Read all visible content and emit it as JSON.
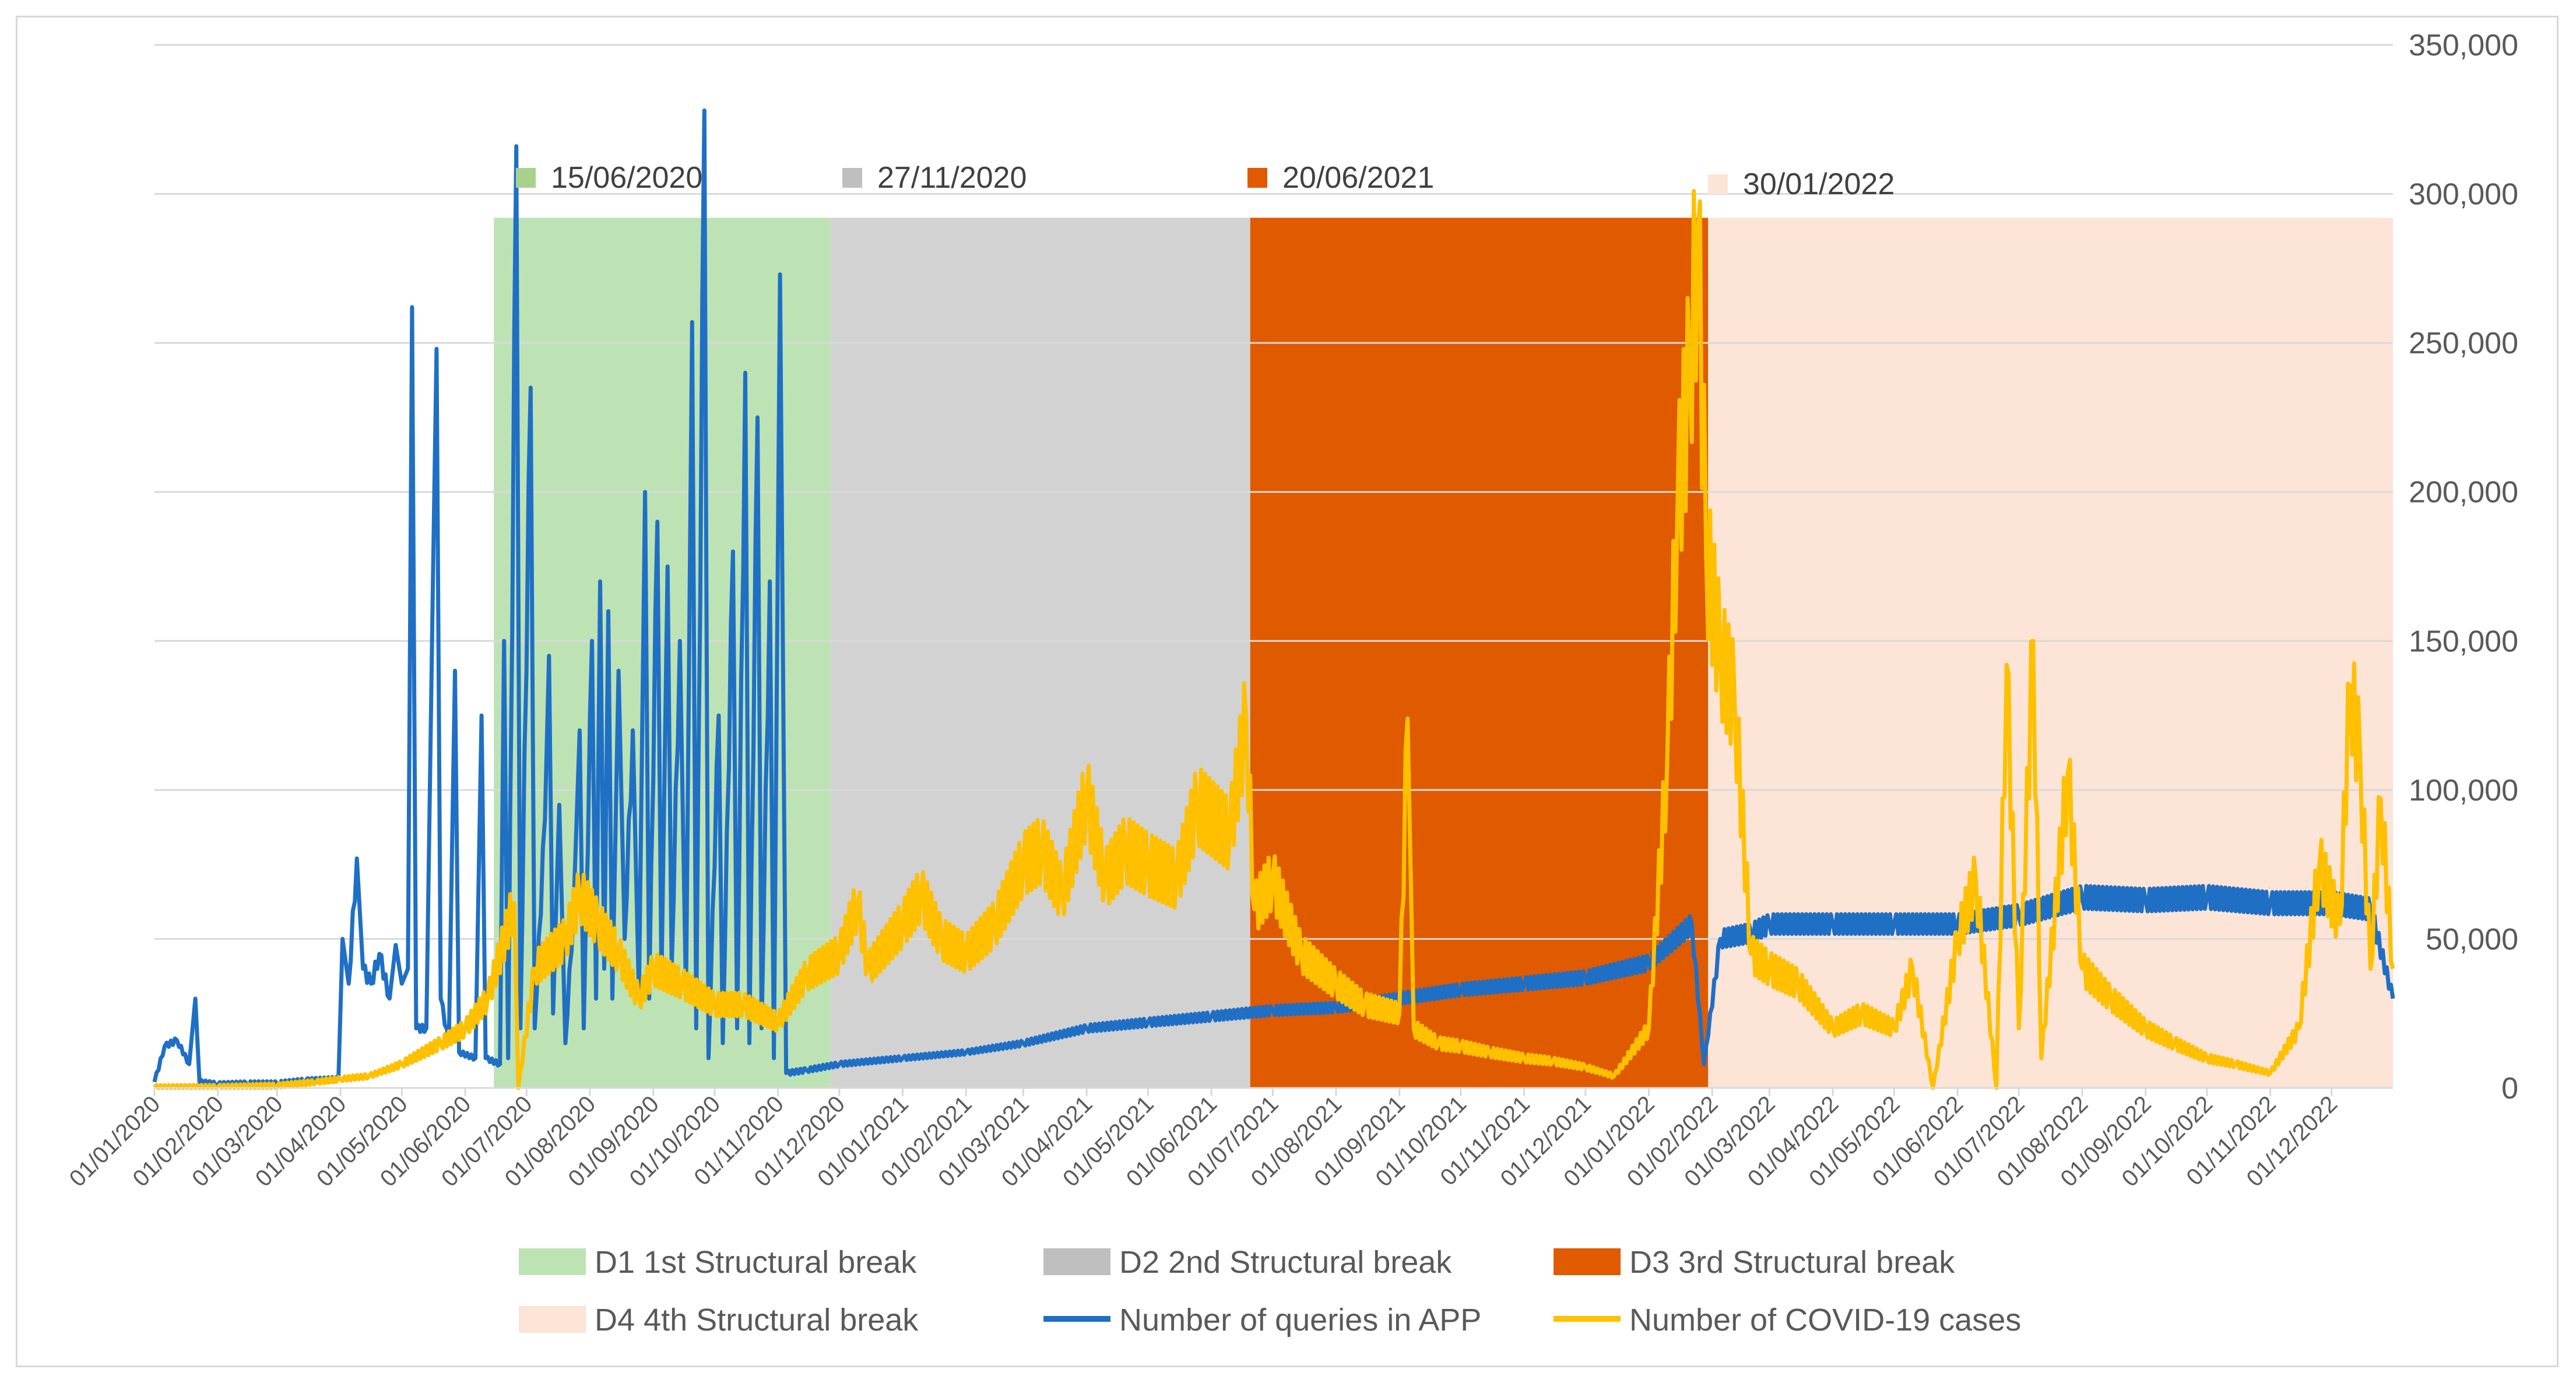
{
  "chart_data": {
    "type": "line",
    "title": "",
    "xlabel": "",
    "ylabel": "",
    "y_axis": {
      "side": "right",
      "range": [
        0,
        350000
      ],
      "ticks": [
        0,
        50000,
        100000,
        150000,
        200000,
        250000,
        300000,
        350000
      ],
      "tick_labels": [
        "0",
        "50,000",
        "100,000",
        "150,000",
        "200,000",
        "250,000",
        "300,000",
        "350,000"
      ]
    },
    "x_axis": {
      "start": "2020-01-01",
      "end": "2022-12-31",
      "tick_dates": [
        "2020-01-01",
        "2020-02-01",
        "2020-03-01",
        "2020-04-01",
        "2020-05-01",
        "2020-06-01",
        "2020-07-01",
        "2020-08-01",
        "2020-09-01",
        "2020-10-01",
        "2020-11-01",
        "2020-12-01",
        "2021-01-01",
        "2021-02-01",
        "2021-03-01",
        "2021-04-01",
        "2021-05-01",
        "2021-06-01",
        "2021-07-01",
        "2021-08-01",
        "2021-09-01",
        "2021-10-01",
        "2021-11-01",
        "2021-12-01",
        "2022-01-01",
        "2022-02-01",
        "2022-03-01",
        "2022-04-01",
        "2022-05-01",
        "2022-06-01",
        "2022-07-01",
        "2022-08-01",
        "2022-09-01",
        "2022-10-01",
        "2022-11-01",
        "2022-12-01"
      ],
      "tick_labels": [
        "01/01/2020",
        "01/02/2020",
        "01/03/2020",
        "01/04/2020",
        "01/05/2020",
        "01/06/2020",
        "01/07/2020",
        "01/08/2020",
        "01/09/2020",
        "01/10/2020",
        "01/11/2020",
        "01/12/2020",
        "01/01/2021",
        "01/02/2021",
        "01/03/2021",
        "01/04/2021",
        "01/05/2021",
        "01/06/2021",
        "01/07/2021",
        "01/08/2021",
        "01/09/2021",
        "01/10/2021",
        "01/11/2021",
        "01/12/2021",
        "01/01/2022",
        "01/02/2022",
        "01/03/2022",
        "01/04/2022",
        "01/05/2022",
        "01/06/2022",
        "01/07/2022",
        "01/08/2022",
        "01/09/2022",
        "01/10/2022",
        "01/11/2022",
        "01/12/2022"
      ]
    },
    "breaks": [
      {
        "id": "D1",
        "legend": "D1 1st Structural break",
        "label": "15/06/2020",
        "start": "2020-06-15",
        "end": "2020-11-27",
        "color": "#bde3b5",
        "band_top": 292000
      },
      {
        "id": "D2",
        "legend": "D2 2nd Structural break",
        "label": "27/11/2020",
        "start": "2020-11-27",
        "end": "2021-06-20",
        "color": "#d2d2d2",
        "band_top": 292000
      },
      {
        "id": "D3",
        "legend": "D3 3rd Structural break",
        "label": "20/06/2021",
        "start": "2021-06-20",
        "end": "2022-01-30",
        "color": "#e05a00",
        "band_top": 292000
      },
      {
        "id": "D4",
        "legend": "D4 4th Structural break",
        "label": "30/01/2022",
        "start": "2022-01-30",
        "end": "2022-12-31",
        "color": "#fce4d6",
        "band_top": 292000
      }
    ],
    "series": [
      {
        "name": "Number of queries in APP",
        "color": "#1f6fc5",
        "points": [
          [
            "2020-01-01",
            2000
          ],
          [
            "2020-01-06",
            14000
          ],
          [
            "2020-01-12",
            16000
          ],
          [
            "2020-01-18",
            8000
          ],
          [
            "2020-01-21",
            30000
          ],
          [
            "2020-01-23",
            2000
          ],
          [
            "2020-02-01",
            1200
          ],
          [
            "2020-02-15",
            1500
          ],
          [
            "2020-03-01",
            1500
          ],
          [
            "2020-03-15",
            2500
          ],
          [
            "2020-03-31",
            3000
          ],
          [
            "2020-04-02",
            50000
          ],
          [
            "2020-04-05",
            35000
          ],
          [
            "2020-04-09",
            77000
          ],
          [
            "2020-04-12",
            40000
          ],
          [
            "2020-04-16",
            35000
          ],
          [
            "2020-04-20",
            45000
          ],
          [
            "2020-04-25",
            30000
          ],
          [
            "2020-04-28",
            48000
          ],
          [
            "2020-05-01",
            35000
          ],
          [
            "2020-05-04",
            40000
          ],
          [
            "2020-05-06",
            262000
          ],
          [
            "2020-05-08",
            20000
          ],
          [
            "2020-05-13",
            20000
          ],
          [
            "2020-05-16",
            160000
          ],
          [
            "2020-05-18",
            248000
          ],
          [
            "2020-05-20",
            30000
          ],
          [
            "2020-05-24",
            15000
          ],
          [
            "2020-05-27",
            140000
          ],
          [
            "2020-05-29",
            12000
          ],
          [
            "2020-06-06",
            10000
          ],
          [
            "2020-06-09",
            125000
          ],
          [
            "2020-06-11",
            10000
          ],
          [
            "2020-06-18",
            8000
          ],
          [
            "2020-06-20",
            150000
          ],
          [
            "2020-06-22",
            10000
          ],
          [
            "2020-06-26",
            316000
          ],
          [
            "2020-06-28",
            20000
          ],
          [
            "2020-07-03",
            235000
          ],
          [
            "2020-07-05",
            20000
          ],
          [
            "2020-07-10",
            90000
          ],
          [
            "2020-07-12",
            145000
          ],
          [
            "2020-07-14",
            25000
          ],
          [
            "2020-07-17",
            95000
          ],
          [
            "2020-07-20",
            15000
          ],
          [
            "2020-07-24",
            60000
          ],
          [
            "2020-07-27",
            120000
          ],
          [
            "2020-07-29",
            20000
          ],
          [
            "2020-08-02",
            150000
          ],
          [
            "2020-08-04",
            30000
          ],
          [
            "2020-08-06",
            170000
          ],
          [
            "2020-08-08",
            40000
          ],
          [
            "2020-08-10",
            160000
          ],
          [
            "2020-08-12",
            30000
          ],
          [
            "2020-08-15",
            140000
          ],
          [
            "2020-08-18",
            50000
          ],
          [
            "2020-08-22",
            120000
          ],
          [
            "2020-08-25",
            30000
          ],
          [
            "2020-08-28",
            200000
          ],
          [
            "2020-08-30",
            30000
          ],
          [
            "2020-09-03",
            190000
          ],
          [
            "2020-09-05",
            35000
          ],
          [
            "2020-09-08",
            175000
          ],
          [
            "2020-09-10",
            40000
          ],
          [
            "2020-09-14",
            150000
          ],
          [
            "2020-09-17",
            30000
          ],
          [
            "2020-09-20",
            257000
          ],
          [
            "2020-09-22",
            20000
          ],
          [
            "2020-09-26",
            328000
          ],
          [
            "2020-09-28",
            10000
          ],
          [
            "2020-10-03",
            125000
          ],
          [
            "2020-10-05",
            15000
          ],
          [
            "2020-10-10",
            180000
          ],
          [
            "2020-10-12",
            20000
          ],
          [
            "2020-10-16",
            240000
          ],
          [
            "2020-10-18",
            15000
          ],
          [
            "2020-10-22",
            225000
          ],
          [
            "2020-10-24",
            20000
          ],
          [
            "2020-10-28",
            170000
          ],
          [
            "2020-10-30",
            10000
          ],
          [
            "2020-11-02",
            273000
          ],
          [
            "2020-11-05",
            5000
          ],
          [
            "2020-11-15",
            6000
          ],
          [
            "2020-12-01",
            8000
          ],
          [
            "2021-01-01",
            10000
          ],
          [
            "2021-02-01",
            12000
          ],
          [
            "2021-03-01",
            15000
          ],
          [
            "2021-04-01",
            20000
          ],
          [
            "2021-05-01",
            22000
          ],
          [
            "2021-06-01",
            24000
          ],
          [
            "2021-07-01",
            26000
          ],
          [
            "2021-08-01",
            27000
          ],
          [
            "2021-09-01",
            30000
          ],
          [
            "2021-10-01",
            33000
          ],
          [
            "2021-11-01",
            35000
          ],
          [
            "2021-12-01",
            37000
          ],
          [
            "2022-01-01",
            42000
          ],
          [
            "2022-01-22",
            55000
          ],
          [
            "2022-01-28",
            8000
          ],
          [
            "2022-02-05",
            50000
          ],
          [
            "2022-02-20",
            52000
          ],
          [
            "2022-03-01",
            55000
          ],
          [
            "2022-04-01",
            55000
          ],
          [
            "2022-05-01",
            55000
          ],
          [
            "2022-06-01",
            55000
          ],
          [
            "2022-07-01",
            58000
          ],
          [
            "2022-08-01",
            64000
          ],
          [
            "2022-09-01",
            63000
          ],
          [
            "2022-10-01",
            64000
          ],
          [
            "2022-11-01",
            62000
          ],
          [
            "2022-12-01",
            62000
          ],
          [
            "2022-12-20",
            60000
          ],
          [
            "2022-12-31",
            30000
          ]
        ]
      },
      {
        "name": "Number of COVID-19 cases",
        "color": "#ffc000",
        "points": [
          [
            "2020-01-01",
            200
          ],
          [
            "2020-02-01",
            300
          ],
          [
            "2020-03-01",
            800
          ],
          [
            "2020-03-20",
            2000
          ],
          [
            "2020-04-01",
            3000
          ],
          [
            "2020-04-15",
            4000
          ],
          [
            "2020-05-01",
            8000
          ],
          [
            "2020-05-20",
            15000
          ],
          [
            "2020-06-01",
            20000
          ],
          [
            "2020-06-12",
            30000
          ],
          [
            "2020-06-25",
            62000
          ],
          [
            "2020-06-27",
            0
          ],
          [
            "2020-07-05",
            40000
          ],
          [
            "2020-07-20",
            50000
          ],
          [
            "2020-07-27",
            65000
          ],
          [
            "2020-08-05",
            55000
          ],
          [
            "2020-08-15",
            45000
          ],
          [
            "2020-08-25",
            30000
          ],
          [
            "2020-09-01",
            40000
          ],
          [
            "2020-09-15",
            35000
          ],
          [
            "2020-10-01",
            28000
          ],
          [
            "2020-10-15",
            28000
          ],
          [
            "2020-11-01",
            22000
          ],
          [
            "2020-11-15",
            38000
          ],
          [
            "2020-12-01",
            45000
          ],
          [
            "2020-12-10",
            62000
          ],
          [
            "2020-12-15",
            40000
          ],
          [
            "2021-01-01",
            55000
          ],
          [
            "2021-01-10",
            65000
          ],
          [
            "2021-01-20",
            50000
          ],
          [
            "2021-02-01",
            45000
          ],
          [
            "2021-02-15",
            55000
          ],
          [
            "2021-03-01",
            75000
          ],
          [
            "2021-03-10",
            80000
          ],
          [
            "2021-03-20",
            65000
          ],
          [
            "2021-04-01",
            98000
          ],
          [
            "2021-04-10",
            70000
          ],
          [
            "2021-04-20",
            80000
          ],
          [
            "2021-05-01",
            75000
          ],
          [
            "2021-05-15",
            70000
          ],
          [
            "2021-05-25",
            95000
          ],
          [
            "2021-06-10",
            85000
          ],
          [
            "2021-06-18",
            124000
          ],
          [
            "2021-06-22",
            60000
          ],
          [
            "2021-07-01",
            70000
          ],
          [
            "2021-07-15",
            45000
          ],
          [
            "2021-08-01",
            35000
          ],
          [
            "2021-08-15",
            28000
          ],
          [
            "2021-09-01",
            25000
          ],
          [
            "2021-09-05",
            124000
          ],
          [
            "2021-09-08",
            20000
          ],
          [
            "2021-09-20",
            15000
          ],
          [
            "2021-10-01",
            14000
          ],
          [
            "2021-10-15",
            12000
          ],
          [
            "2021-11-01",
            10000
          ],
          [
            "2021-11-15",
            9000
          ],
          [
            "2021-12-01",
            7000
          ],
          [
            "2021-12-15",
            4000
          ],
          [
            "2022-01-01",
            20000
          ],
          [
            "2022-01-10",
            110000
          ],
          [
            "2022-01-15",
            195000
          ],
          [
            "2022-01-21",
            240000
          ],
          [
            "2022-01-25",
            288000
          ],
          [
            "2022-01-29",
            180000
          ],
          [
            "2022-02-05",
            145000
          ],
          [
            "2022-02-12",
            130000
          ],
          [
            "2022-02-20",
            45000
          ],
          [
            "2022-03-01",
            40000
          ],
          [
            "2022-03-15",
            35000
          ],
          [
            "2022-04-01",
            20000
          ],
          [
            "2022-04-15",
            25000
          ],
          [
            "2022-05-01",
            20000
          ],
          [
            "2022-05-10",
            40000
          ],
          [
            "2022-05-20",
            0
          ],
          [
            "2022-06-01",
            50000
          ],
          [
            "2022-06-10",
            70000
          ],
          [
            "2022-06-20",
            0
          ],
          [
            "2022-06-25",
            142000
          ],
          [
            "2022-07-01",
            20000
          ],
          [
            "2022-07-08",
            150000
          ],
          [
            "2022-07-12",
            10000
          ],
          [
            "2022-07-25",
            106000
          ],
          [
            "2022-08-01",
            40000
          ],
          [
            "2022-08-15",
            30000
          ],
          [
            "2022-09-01",
            20000
          ],
          [
            "2022-09-15",
            15000
          ],
          [
            "2022-10-01",
            10000
          ],
          [
            "2022-10-15",
            8000
          ],
          [
            "2022-11-01",
            5000
          ],
          [
            "2022-11-15",
            20000
          ],
          [
            "2022-11-25",
            75000
          ],
          [
            "2022-12-05",
            55000
          ],
          [
            "2022-12-10",
            135000
          ],
          [
            "2022-12-15",
            110000
          ],
          [
            "2022-12-20",
            40000
          ],
          [
            "2022-12-25",
            97000
          ],
          [
            "2022-12-31",
            40000
          ]
        ]
      }
    ],
    "legend": {
      "placement": "bottom",
      "entries": [
        {
          "label": "D1 1st Structural break",
          "kind": "patch",
          "color": "#bde3b5"
        },
        {
          "label": "D2 2nd Structural break",
          "kind": "patch",
          "color": "#bfbfbf"
        },
        {
          "label": "D3 3rd Structural break",
          "kind": "patch",
          "color": "#e05a00"
        },
        {
          "label": "D4 4th Structural break",
          "kind": "patch",
          "color": "#fce4d6"
        },
        {
          "label": "Number of queries in APP",
          "kind": "line",
          "color": "#1f6fc5"
        },
        {
          "label": "Number of COVID-19 cases",
          "kind": "line",
          "color": "#ffc000"
        }
      ]
    }
  }
}
